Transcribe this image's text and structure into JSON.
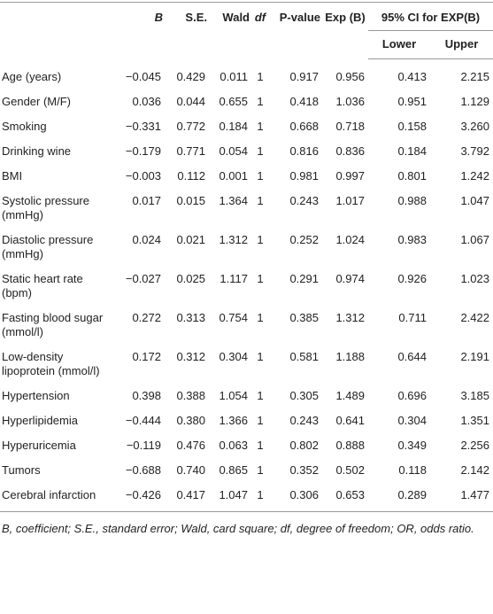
{
  "table": {
    "header": {
      "columns": [
        "B",
        "S.E.",
        "Wald",
        "df",
        "P-value",
        "Exp (B)",
        "95% CI for EXP(B)"
      ],
      "subcolumns": [
        "Lower",
        "Upper"
      ]
    },
    "rows": [
      {
        "label": "Age (years)",
        "values": [
          "−0.045",
          "0.429",
          "0.011",
          "1",
          "0.917",
          "0.956",
          "0.413",
          "2.215"
        ]
      },
      {
        "label": "Gender (M/F)",
        "values": [
          "0.036",
          "0.044",
          "0.655",
          "1",
          "0.418",
          "1.036",
          "0.951",
          "1.129"
        ]
      },
      {
        "label": "Smoking",
        "values": [
          "−0.331",
          "0.772",
          "0.184",
          "1",
          "0.668",
          "0.718",
          "0.158",
          "3.260"
        ]
      },
      {
        "label": "Drinking wine",
        "values": [
          "−0.179",
          "0.771",
          "0.054",
          "1",
          "0.816",
          "0.836",
          "0.184",
          "3.792"
        ]
      },
      {
        "label": "BMI",
        "values": [
          "−0.003",
          "0.112",
          "0.001",
          "1",
          "0.981",
          "0.997",
          "0.801",
          "1.242"
        ]
      },
      {
        "label": "Systolic pressure (mmHg)",
        "values": [
          "0.017",
          "0.015",
          "1.364",
          "1",
          "0.243",
          "1.017",
          "0.988",
          "1.047"
        ]
      },
      {
        "label": "Diastolic pressure (mmHg)",
        "values": [
          "0.024",
          "0.021",
          "1.312",
          "1",
          "0.252",
          "1.024",
          "0.983",
          "1.067"
        ]
      },
      {
        "label": "Static heart rate (bpm)",
        "values": [
          "−0.027",
          "0.025",
          "1.117",
          "1",
          "0.291",
          "0.974",
          "0.926",
          "1.023"
        ]
      },
      {
        "label": "Fasting blood sugar (mmol/l)",
        "values": [
          "0.272",
          "0.313",
          "0.754",
          "1",
          "0.385",
          "1.312",
          "0.711",
          "2.422"
        ]
      },
      {
        "label": "Low-density lipoprotein (mmol/l)",
        "values": [
          "0.172",
          "0.312",
          "0.304",
          "1",
          "0.581",
          "1.188",
          "0.644",
          "2.191"
        ]
      },
      {
        "label": "Hypertension",
        "values": [
          "0.398",
          "0.388",
          "1.054",
          "1",
          "0.305",
          "1.489",
          "0.696",
          "3.185"
        ]
      },
      {
        "label": "Hyperlipidemia",
        "values": [
          "−0.444",
          "0.380",
          "1.366",
          "1",
          "0.243",
          "0.641",
          "0.304",
          "1.351"
        ]
      },
      {
        "label": "Hyperuricemia",
        "values": [
          "−0.119",
          "0.476",
          "0.063",
          "1",
          "0.802",
          "0.888",
          "0.349",
          "2.256"
        ]
      },
      {
        "label": "Tumors",
        "values": [
          "−0.688",
          "0.740",
          "0.865",
          "1",
          "0.352",
          "0.502",
          "0.118",
          "2.142"
        ]
      },
      {
        "label": "Cerebral infarction",
        "values": [
          "−0.426",
          "0.417",
          "1.047",
          "1",
          "0.306",
          "0.653",
          "0.289",
          "1.477"
        ]
      }
    ],
    "footnote": "B, coefficient; S.E., standard error; Wald, card square; df, degree of freedom; OR, odds ratio."
  }
}
